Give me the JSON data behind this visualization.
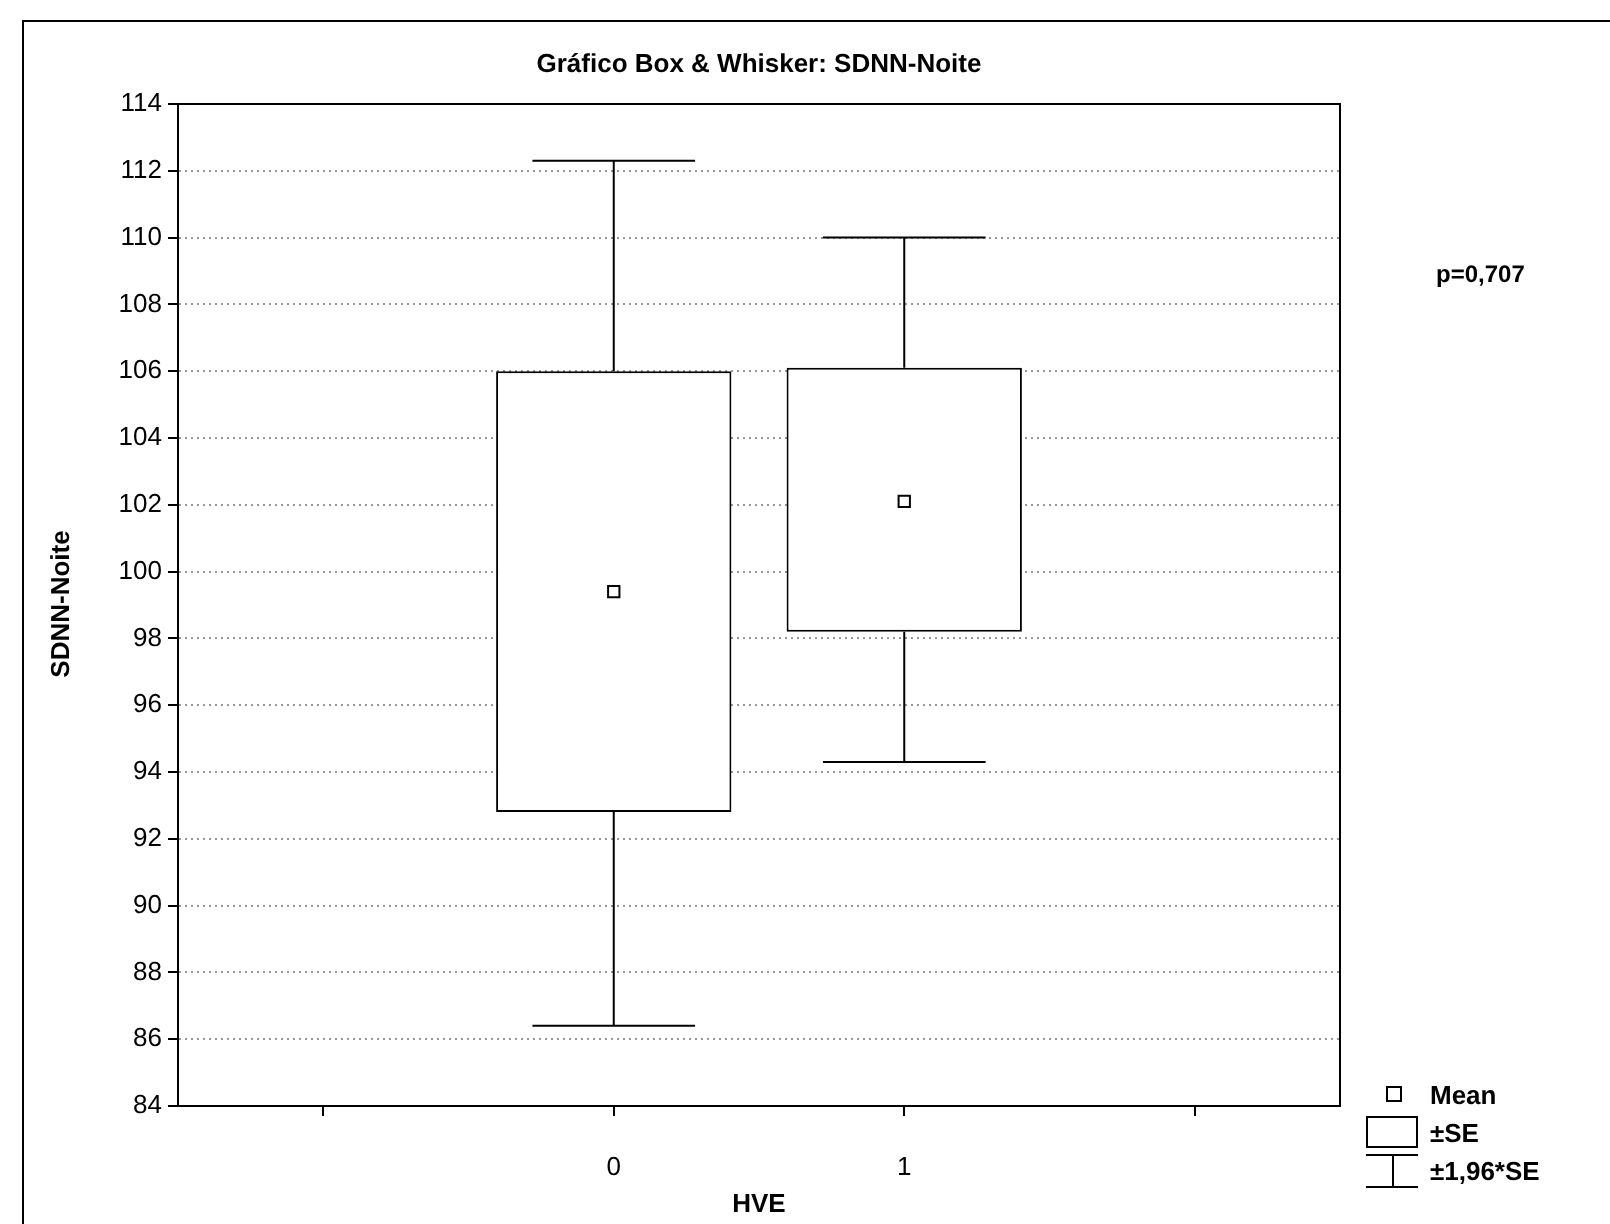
{
  "chart_data": {
    "type": "box",
    "title": "Gráfico Box & Whisker: SDNN-Noite",
    "xlabel": "HVE",
    "ylabel": "SDNN-Noite",
    "categories": [
      null,
      "0",
      "1",
      null
    ],
    "boxes": [
      null,
      {
        "low": 86.4,
        "q1": 92.8,
        "q3": 106.0,
        "high": 112.3,
        "mean": 99.4
      },
      {
        "low": 94.3,
        "q1": 98.2,
        "q3": 106.1,
        "high": 110.0,
        "mean": 102.1
      },
      null
    ],
    "color": "#000000",
    "ylim": [
      84,
      114
    ],
    "yticks": [
      84,
      86,
      88,
      90,
      92,
      94,
      96,
      98,
      100,
      102,
      104,
      106,
      108,
      110,
      112,
      114
    ],
    "grid": "y",
    "marker": "square",
    "annotations": [
      "p=0,707",
      "Mean",
      "±SE",
      "±1,96*SE"
    ]
  }
}
